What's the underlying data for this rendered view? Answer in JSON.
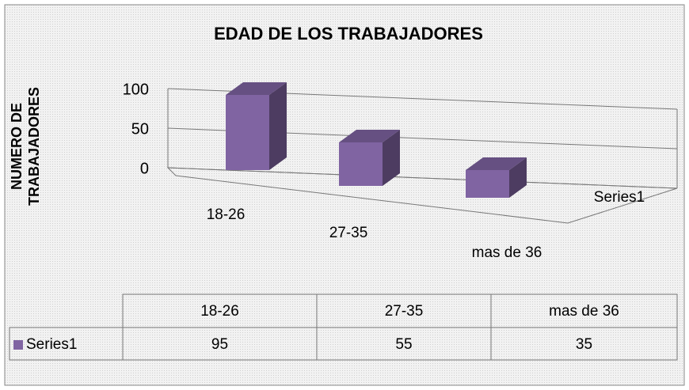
{
  "chart_data": {
    "type": "bar3d",
    "title": "EDAD DE LOS TRABAJADORES",
    "ylabel": "NUMERO DE TRABAJADORES",
    "categories": [
      "18-26",
      "27-35",
      "mas de 36"
    ],
    "series": [
      {
        "name": "Series1",
        "color": "#8064a2",
        "values": [
          95,
          55,
          35
        ]
      }
    ],
    "ylim": [
      0,
      100
    ],
    "yticks": [
      0,
      50,
      100
    ],
    "grid": true,
    "data_table": true
  }
}
